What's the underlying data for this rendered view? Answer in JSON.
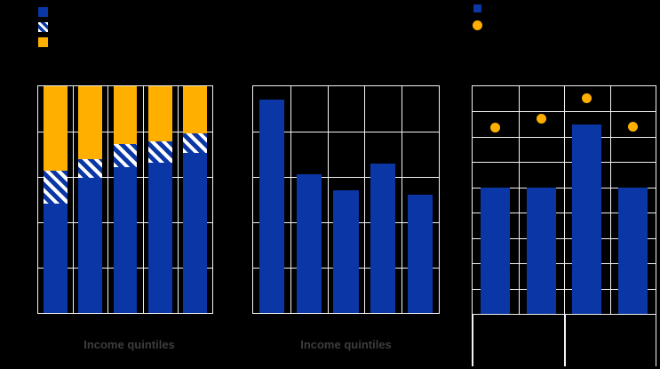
{
  "background": "#000000",
  "colors": {
    "bar_blue": "#0A37A5",
    "accent_orange": "#FFAF00",
    "gridline_white": "#F2F2F2",
    "label_gray": "#3D3D3D"
  },
  "legends": [
    {
      "for_chart": 1,
      "position": "top-left",
      "items": [
        {
          "swatch": "solid-blue-square",
          "label": ""
        },
        {
          "swatch": "blue-white-hatched-square",
          "label": ""
        },
        {
          "swatch": "solid-orange-square",
          "label": ""
        }
      ],
      "note": "legend text not visible (black on black)"
    },
    {
      "for_chart": 3,
      "position": "top-left",
      "items": [
        {
          "swatch": "solid-blue-square",
          "label": ""
        },
        {
          "swatch": "solid-orange-circle",
          "label": ""
        }
      ],
      "note": "legend text not visible (black on black)"
    }
  ],
  "chart_data": [
    {
      "type": "bar",
      "subtype": "stacked-100-percent",
      "title": "",
      "xlabel": "Income quintiles",
      "ylabel": "",
      "num_categories": 5,
      "categories": [
        "",
        "",
        "",
        "",
        ""
      ],
      "series": [
        {
          "name": "bottom-solid-blue",
          "fill": "blue",
          "values": [
            48.4,
            59.6,
            64.5,
            66.4,
            70.6
          ]
        },
        {
          "name": "middle-hatched",
          "fill": "hatched",
          "values": [
            14.5,
            8.1,
            9.9,
            9.1,
            8.6
          ]
        },
        {
          "name": "top-solid-orange",
          "fill": "orange",
          "values": [
            37.1,
            32.3,
            25.6,
            24.5,
            20.8
          ]
        }
      ],
      "ylim": [
        0,
        100
      ],
      "y_gridline_intervals": 5,
      "grid": true,
      "bar_width_frac": 0.68,
      "axis_tick_labels_visible": false
    },
    {
      "type": "bar",
      "subtype": "simple",
      "title": "",
      "xlabel": "Income quintiles",
      "ylabel": "",
      "num_categories": 5,
      "categories": [
        "",
        "",
        "",
        "",
        ""
      ],
      "series": [
        {
          "name": "solid-blue-bars",
          "fill": "blue",
          "values": [
            94,
            61,
            54,
            66,
            52
          ]
        }
      ],
      "ylim": [
        0,
        100
      ],
      "y_gridline_intervals": 5,
      "grid": true,
      "bar_width_frac": 0.675,
      "axis_tick_labels_visible": false,
      "note": "values expressed as percent of visible axis height; tick labels not visible"
    },
    {
      "type": "bar",
      "subtype": "bars-with-scatter-markers",
      "title": "",
      "xlabel": "",
      "ylabel": "",
      "num_categories": 4,
      "categories": [
        "",
        "",
        "",
        ""
      ],
      "series": [
        {
          "name": "solid-blue-bars",
          "fill": "blue",
          "kind": "bar",
          "values": [
            55.5,
            55.5,
            83.2,
            55.5
          ]
        },
        {
          "name": "orange-dot-markers",
          "fill": "orange",
          "kind": "scatter",
          "values": [
            81.8,
            85.8,
            94.6,
            82.3
          ]
        }
      ],
      "ylim": [
        0,
        100
      ],
      "y_gridline_intervals": 9,
      "grid": true,
      "bar_width_frac": 0.635,
      "marker_size_px": 11,
      "category_groups": 2,
      "group_divider_lines": true,
      "axis_tick_labels_visible": false,
      "note": "values expressed as percent of visible axis height; tick labels not visible"
    }
  ],
  "xaxis_labels": {
    "chart1": "Income quintiles",
    "chart2": "Income quintiles"
  }
}
